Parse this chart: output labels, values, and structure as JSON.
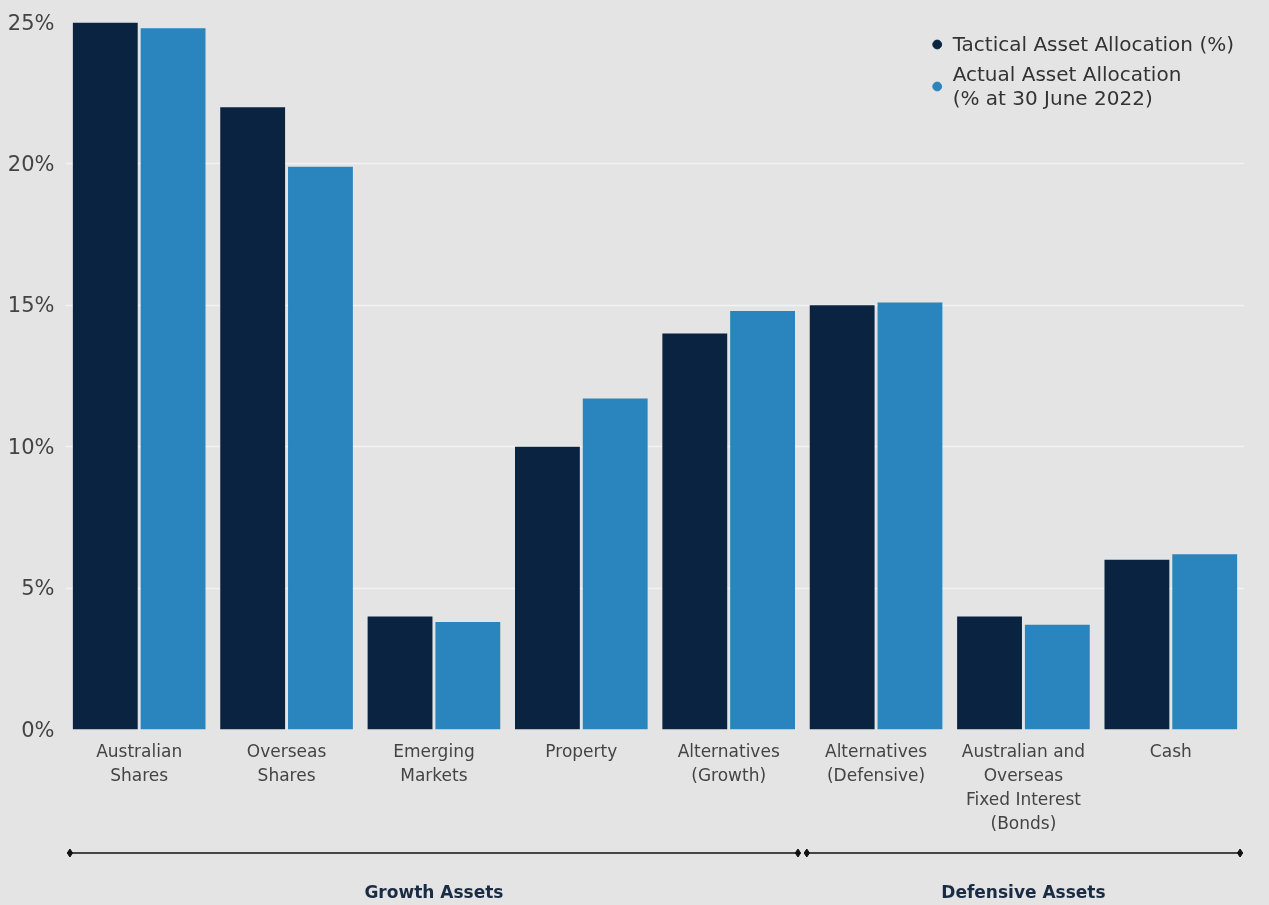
{
  "chart_data": {
    "type": "bar",
    "categories": [
      "Australian\nShares",
      "Overseas\nShares",
      "Emerging\nMarkets",
      "Property",
      "Alternatives\n(Growth)",
      "Alternatives\n(Defensive)",
      "Australian and\nOverseas\nFixed Interest\n(Bonds)",
      "Cash"
    ],
    "series": [
      {
        "name": "Tactical Asset Allocation (%)",
        "color": "#0a2341",
        "values": [
          25,
          22,
          4,
          10,
          14,
          15,
          4,
          6
        ]
      },
      {
        "name": "Actual Asset Allocation\n(% at 30 June 2022)",
        "color": "#2a84bd",
        "values": [
          24.8,
          19.9,
          3.8,
          11.7,
          14.8,
          15.1,
          3.7,
          6.2
        ]
      }
    ],
    "ylim": [
      0,
      25
    ],
    "yticks": [
      {
        "value": 0,
        "label": "0%"
      },
      {
        "value": 5,
        "label": "5%"
      },
      {
        "value": 10,
        "label": "10%"
      },
      {
        "value": 15,
        "label": "15%"
      },
      {
        "value": 20,
        "label": "20%"
      },
      {
        "value": 25,
        "label": "25%"
      }
    ],
    "grid": "y",
    "legend": "top right",
    "marker": "circle",
    "annotations": [
      "Growth Assets",
      "Defensive Assets"
    ]
  }
}
